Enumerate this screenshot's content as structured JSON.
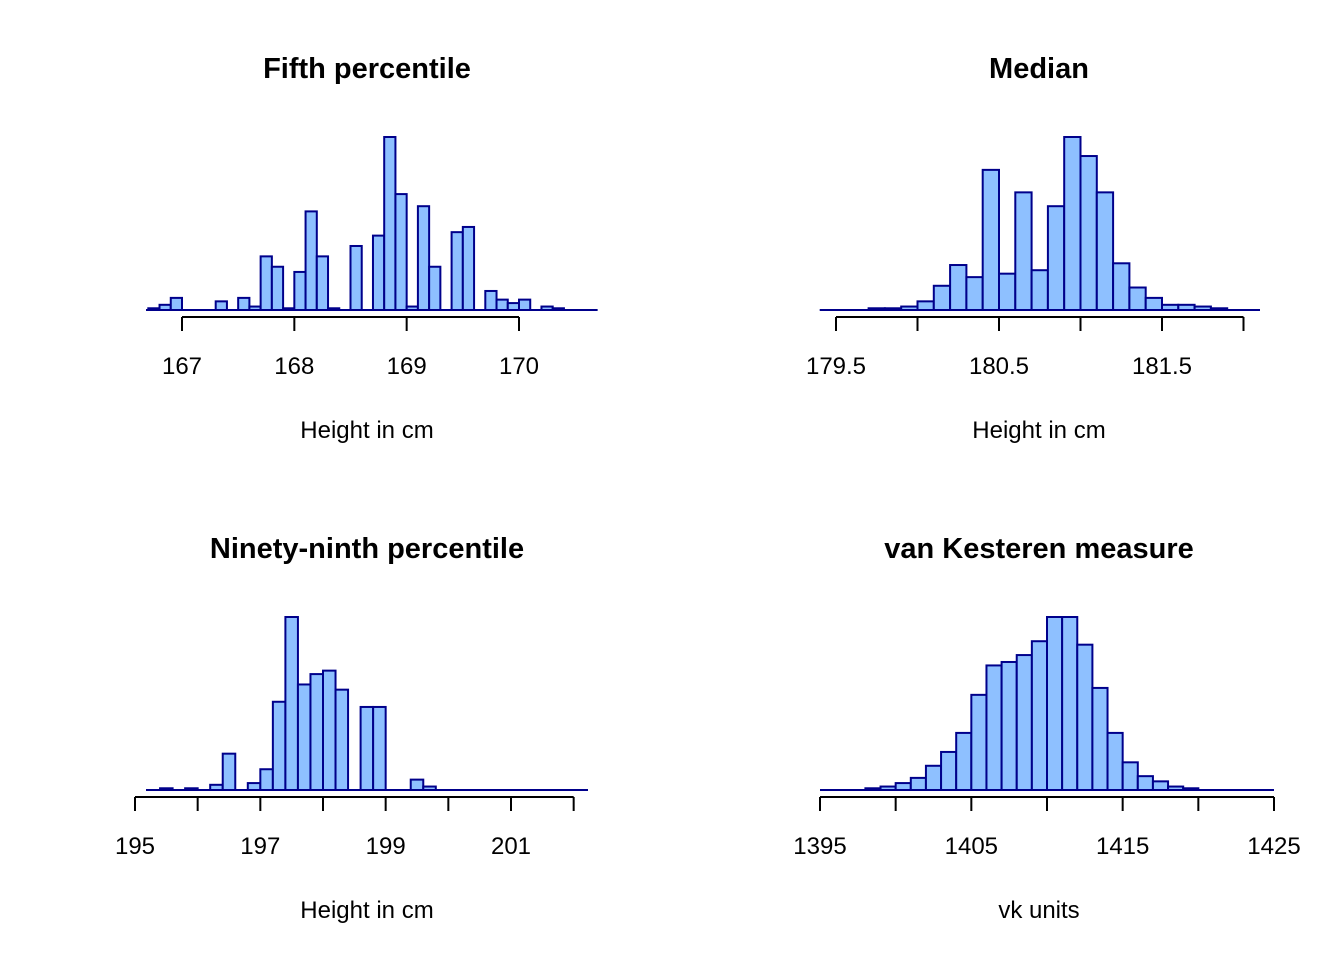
{
  "colors": {
    "bar_fill": "#8ec0ff",
    "bar_stroke": "#00008b",
    "axis": "#000000"
  },
  "chart_data": [
    {
      "type": "bar",
      "histogram": true,
      "title": "Fifth percentile",
      "xlabel": "Height in cm",
      "ylabel": "",
      "x_ticks": [
        "167",
        "168",
        "169",
        "170"
      ],
      "bin_start": 166.7,
      "bin_width": 0.1,
      "values": [
        1,
        3,
        7,
        0,
        0,
        0,
        5,
        0,
        7,
        2,
        31,
        25,
        1,
        22,
        57,
        31,
        1,
        0,
        37,
        0,
        43,
        100,
        67,
        2,
        60,
        25,
        0,
        45,
        48,
        0,
        11,
        6,
        4,
        6,
        0,
        2,
        1,
        0,
        0,
        0
      ],
      "ymax": 100
    },
    {
      "type": "bar",
      "histogram": true,
      "title": "Median",
      "xlabel": "Height in cm",
      "ylabel": "",
      "x_ticks": [
        "179.5",
        "180.5",
        "181.5"
      ],
      "bin_start": 179.4,
      "bin_width": 0.1,
      "values": [
        0,
        0,
        0,
        1,
        1,
        2,
        5,
        14,
        26,
        19,
        81,
        21,
        68,
        23,
        60,
        100,
        89,
        68,
        27,
        13,
        7,
        3,
        3,
        2,
        1,
        0,
        0
      ],
      "ymax": 100
    },
    {
      "type": "bar",
      "histogram": true,
      "title": "Ninety-ninth percentile",
      "xlabel": "Height in cm",
      "ylabel": "",
      "x_ticks": [
        "195",
        "197",
        "199",
        "201"
      ],
      "bin_start": 195.2,
      "bin_width": 0.2,
      "values": [
        0,
        1,
        0,
        1,
        0,
        3,
        21,
        0,
        4,
        12,
        51,
        100,
        61,
        67,
        69,
        58,
        0,
        48,
        48,
        0,
        0,
        6,
        2,
        0,
        0,
        0,
        0,
        0,
        0,
        0,
        0,
        0,
        0,
        0
      ],
      "ymax": 100
    },
    {
      "type": "bar",
      "histogram": true,
      "title": "van Kesteren measure",
      "xlabel": "vk units",
      "ylabel": "",
      "x_ticks": [
        "1395",
        "1405",
        "1415",
        "1425"
      ],
      "bin_start": 1395,
      "bin_width": 1,
      "values": [
        0,
        0,
        0,
        1,
        2,
        4,
        7,
        14,
        22,
        33,
        55,
        72,
        74,
        78,
        86,
        100,
        100,
        84,
        59,
        33,
        16,
        8,
        5,
        2,
        1,
        0,
        0,
        0,
        0,
        0
      ],
      "ymax": 100
    }
  ]
}
